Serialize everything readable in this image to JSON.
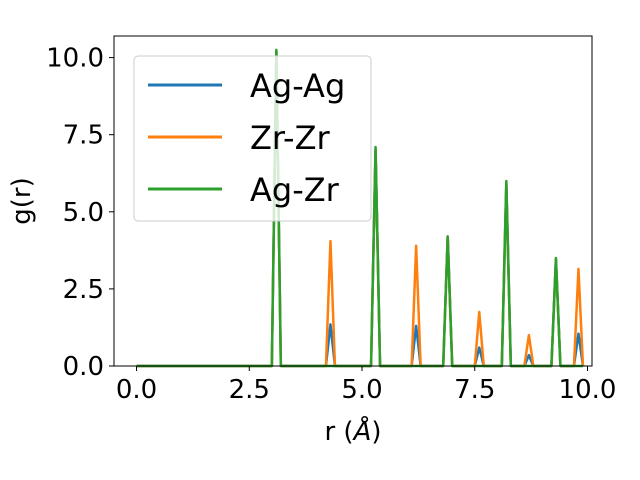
{
  "chart_data": {
    "type": "line",
    "xlabel_prefix": "r (",
    "xlabel_unit": "Å",
    "xlabel_suffix": ")",
    "ylabel": "g(r)",
    "xlim": [
      -0.5,
      10.1
    ],
    "ylim": [
      0,
      10.7
    ],
    "xticks": [
      0,
      2.5,
      5,
      7.5,
      10
    ],
    "xtick_labels": [
      "0.0",
      "2.5",
      "5.0",
      "7.5",
      "10.0"
    ],
    "yticks": [
      0,
      2.5,
      5,
      7.5,
      10
    ],
    "ytick_labels": [
      "0.0",
      "2.5",
      "5.0",
      "7.5",
      "10.0"
    ],
    "grid": false,
    "legend_position": "upper-left",
    "series": [
      {
        "name": "Ag-Ag",
        "color": "#1f77b4",
        "x": [
          0,
          3.0,
          3.1,
          3.2,
          4.2,
          4.3,
          4.4,
          5.2,
          5.3,
          5.4,
          6.1,
          6.2,
          6.3,
          6.8,
          6.9,
          7.0,
          7.5,
          7.6,
          7.7,
          8.1,
          8.2,
          8.3,
          8.6,
          8.7,
          8.8,
          9.2,
          9.3,
          9.4,
          9.7,
          9.8,
          9.9
        ],
        "y": [
          0,
          0,
          10.2,
          0,
          0,
          1.35,
          0,
          0,
          7.0,
          0,
          0,
          1.3,
          0,
          0,
          4.2,
          0,
          0,
          0.6,
          0,
          0,
          5.9,
          0,
          0,
          0.35,
          0,
          0,
          3.45,
          0,
          0,
          1.05,
          0
        ]
      },
      {
        "name": "Zr-Zr",
        "color": "#ff7f0e",
        "x": [
          0,
          3.0,
          3.1,
          3.2,
          4.2,
          4.3,
          4.4,
          5.2,
          5.3,
          5.4,
          6.1,
          6.2,
          6.3,
          6.8,
          6.9,
          7.0,
          7.5,
          7.6,
          7.7,
          8.1,
          8.2,
          8.3,
          8.6,
          8.7,
          8.8,
          9.2,
          9.3,
          9.4,
          9.7,
          9.8,
          9.9
        ],
        "y": [
          0,
          0,
          10.2,
          0,
          0,
          4.05,
          0,
          0,
          7.0,
          0,
          0,
          3.9,
          0,
          0,
          4.2,
          0,
          0,
          1.75,
          0,
          0,
          5.9,
          0,
          0,
          1.0,
          0,
          0,
          3.45,
          0,
          0,
          3.15,
          0
        ]
      },
      {
        "name": "Ag-Zr",
        "color": "#2ca02c",
        "x": [
          0,
          3.0,
          3.1,
          3.2,
          4.2,
          4.3,
          4.4,
          5.2,
          5.3,
          5.4,
          6.1,
          6.2,
          6.3,
          6.8,
          6.9,
          7.0,
          7.5,
          7.6,
          7.7,
          8.1,
          8.2,
          8.3,
          8.6,
          8.7,
          8.8,
          9.2,
          9.3,
          9.4,
          9.7,
          9.8,
          9.9
        ],
        "y": [
          0,
          0,
          10.25,
          0,
          0,
          0,
          0,
          0,
          7.1,
          0,
          0,
          0,
          0,
          0,
          4.2,
          0,
          0,
          0,
          0,
          0,
          6.0,
          0,
          0,
          0,
          0,
          0,
          3.5,
          0,
          0,
          0,
          0
        ]
      }
    ]
  }
}
